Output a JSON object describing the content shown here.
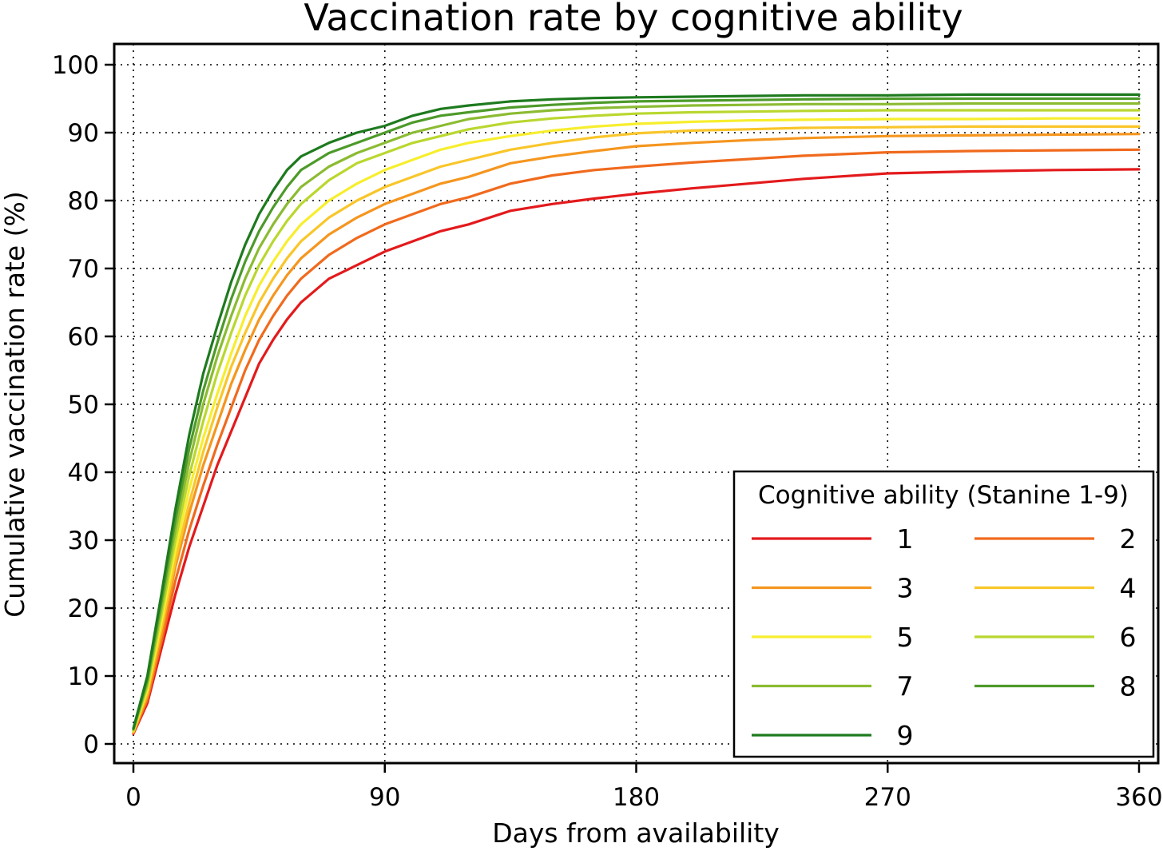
{
  "chart_data": {
    "type": "line",
    "title": "Vaccination rate by cognitive ability",
    "xlabel": "Days from availability",
    "ylabel": "Cumulative vaccination rate (%)",
    "xlim": [
      0,
      360
    ],
    "ylim": [
      0,
      100
    ],
    "xticks": [
      0,
      90,
      180,
      270,
      360
    ],
    "yticks": [
      0,
      10,
      20,
      30,
      40,
      50,
      60,
      70,
      80,
      90,
      100
    ],
    "grid": true,
    "legend": {
      "title": "Cognitive ability (Stanine 1-9)",
      "placement": "bottom-right",
      "columns": 2
    },
    "x": [
      0,
      5,
      10,
      15,
      20,
      25,
      30,
      35,
      40,
      45,
      50,
      55,
      60,
      70,
      80,
      90,
      100,
      110,
      120,
      135,
      150,
      165,
      180,
      200,
      220,
      240,
      270,
      300,
      330,
      360
    ],
    "series": [
      {
        "name": "1",
        "color": "#e31a1c",
        "values": [
          1.5,
          6,
          14,
          22,
          29,
          35,
          41,
          46,
          51,
          56,
          59.5,
          62.5,
          65,
          68.5,
          70.5,
          72.5,
          74,
          75.5,
          76.5,
          78.5,
          79.5,
          80.3,
          81,
          81.8,
          82.5,
          83.2,
          84,
          84.3,
          84.5,
          84.6
        ]
      },
      {
        "name": "2",
        "color": "#f06a1d",
        "values": [
          1.6,
          6.5,
          15,
          24,
          31.5,
          38,
          44,
          49.5,
          55,
          59.5,
          63,
          66,
          68.5,
          72,
          74.5,
          76.5,
          78,
          79.5,
          80.5,
          82.5,
          83.7,
          84.5,
          85,
          85.6,
          86.1,
          86.6,
          87.1,
          87.3,
          87.4,
          87.5
        ]
      },
      {
        "name": "3",
        "color": "#f5961f",
        "values": [
          1.7,
          7,
          16,
          26,
          34,
          41,
          47,
          53,
          58,
          62.5,
          66,
          69,
          71.5,
          75,
          77.5,
          79.5,
          81,
          82.5,
          83.5,
          85.5,
          86.5,
          87.3,
          88,
          88.5,
          88.9,
          89.2,
          89.5,
          89.6,
          89.7,
          89.8
        ]
      },
      {
        "name": "4",
        "color": "#f9c62a",
        "values": [
          1.8,
          7.5,
          17,
          27,
          35.5,
          43,
          49.5,
          55.5,
          60.5,
          65,
          68.5,
          71.5,
          74,
          77.5,
          80,
          82,
          83.5,
          85,
          86,
          87.5,
          88.5,
          89.3,
          89.9,
          90.3,
          90.5,
          90.7,
          90.8,
          90.9,
          90.9,
          90.9
        ]
      },
      {
        "name": "5",
        "color": "#f7ee2e",
        "values": [
          1.9,
          8,
          18,
          28.5,
          37.5,
          45,
          51.5,
          57.5,
          63,
          67.5,
          71,
          74,
          76.5,
          80,
          82.5,
          84.5,
          86,
          87.5,
          88.5,
          89.5,
          90.3,
          90.9,
          91.3,
          91.6,
          91.8,
          91.9,
          92,
          92,
          92.1,
          92.1
        ]
      },
      {
        "name": "6",
        "color": "#b9d72f",
        "values": [
          2,
          8.5,
          19,
          30,
          39.5,
          47.5,
          54.5,
          60.5,
          66,
          70.5,
          74,
          77,
          79.5,
          83,
          85.5,
          87,
          88.5,
          89.5,
          90.5,
          91.5,
          92.1,
          92.5,
          92.8,
          93,
          93.1,
          93.2,
          93.3,
          93.3,
          93.3,
          93.3
        ]
      },
      {
        "name": "7",
        "color": "#8bbb32",
        "values": [
          2.1,
          9,
          20,
          31.5,
          41.5,
          50,
          57,
          63,
          68.5,
          73,
          76.5,
          79.5,
          82,
          85,
          87,
          88.5,
          90,
          91,
          92,
          92.8,
          93.3,
          93.6,
          93.8,
          94,
          94.1,
          94.2,
          94.2,
          94.3,
          94.3,
          94.3
        ]
      },
      {
        "name": "8",
        "color": "#4d9a2a",
        "values": [
          2.2,
          9.5,
          21,
          33,
          43.5,
          52,
          59,
          65.5,
          71,
          75.5,
          79,
          82,
          84.5,
          87,
          88.5,
          90,
          91.5,
          92.5,
          93,
          93.7,
          94.1,
          94.4,
          94.6,
          94.7,
          94.8,
          94.9,
          95,
          95,
          95,
          95
        ]
      },
      {
        "name": "9",
        "color": "#1e7a1e",
        "values": [
          2.3,
          10,
          22,
          34.5,
          45.5,
          54.5,
          61.5,
          68,
          73.5,
          78,
          81.5,
          84.5,
          86.5,
          88.5,
          90,
          91,
          92.5,
          93.5,
          94,
          94.6,
          94.9,
          95.1,
          95.2,
          95.3,
          95.4,
          95.5,
          95.5,
          95.6,
          95.6,
          95.6
        ]
      }
    ]
  }
}
